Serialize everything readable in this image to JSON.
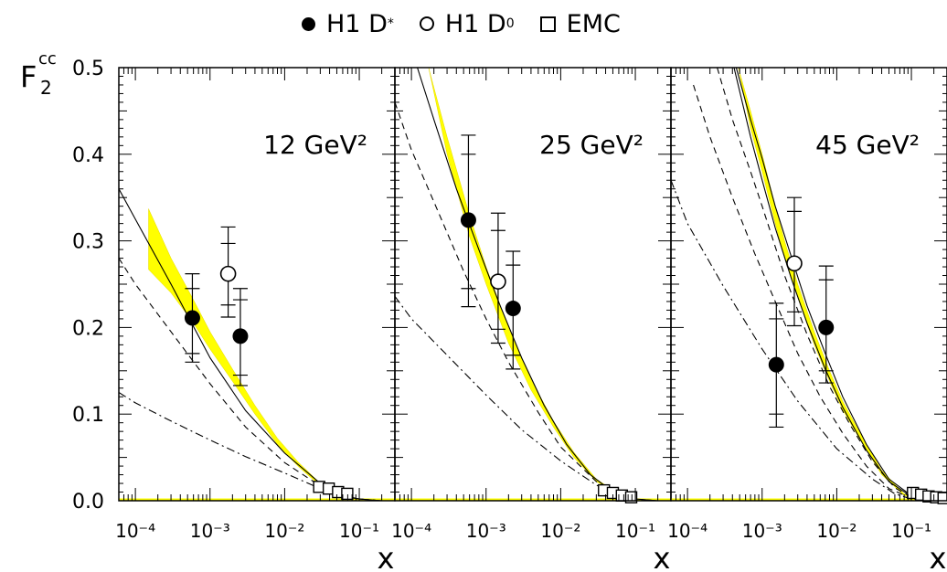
{
  "legend": {
    "h1_dstar": {
      "base": "H1 D",
      "sup": "*"
    },
    "h1_d0": {
      "base": "H1 D",
      "sup": "0"
    },
    "emc": "EMC"
  },
  "ylabel": {
    "base": "F",
    "sub": "2",
    "sup": "cc"
  },
  "colors": {
    "band": "#ffff00",
    "band_edge": "#e6d800",
    "axes": "#000000"
  },
  "chart_data": [
    {
      "type": "scatter",
      "panel_label": "12 GeV²",
      "x_scale": "log",
      "xlim": [
        6e-05,
        0.3
      ],
      "ylim": [
        0.0,
        0.5
      ],
      "xlabel": "x",
      "ylabel": "F2cc",
      "x_tick_labels": [
        "10⁻⁴",
        "10⁻³",
        "10⁻²",
        "10⁻¹"
      ],
      "y_tick_labels": [
        "0.0",
        "0.1",
        "0.2",
        "0.3",
        "0.4",
        "0.5"
      ],
      "series": [
        {
          "name": "H1 D*",
          "marker": "filled-circle",
          "points": [
            {
              "x": 0.00058,
              "y": 0.211,
              "lo": 0.16,
              "hi": 0.262,
              "lo_in": 0.17,
              "hi_in": 0.245
            },
            {
              "x": 0.00255,
              "y": 0.19,
              "lo": 0.133,
              "hi": 0.245,
              "lo_in": 0.145,
              "hi_in": 0.232
            }
          ]
        },
        {
          "name": "H1 D0",
          "marker": "open-circle",
          "points": [
            {
              "x": 0.00175,
              "y": 0.262,
              "lo": 0.212,
              "hi": 0.316,
              "lo_in": 0.226,
              "hi_in": 0.297
            }
          ]
        },
        {
          "name": "EMC",
          "marker": "open-square",
          "points": [
            {
              "x": 0.029,
              "y": 0.016
            },
            {
              "x": 0.039,
              "y": 0.014
            },
            {
              "x": 0.052,
              "y": 0.01
            },
            {
              "x": 0.069,
              "y": 0.008
            }
          ]
        }
      ],
      "band": {
        "x": [
          0.00015,
          0.0003,
          0.0006,
          0.001,
          0.002,
          0.004,
          0.008,
          0.015,
          0.03,
          0.06,
          0.1
        ],
        "upper": [
          0.337,
          0.28,
          0.232,
          0.195,
          0.152,
          0.11,
          0.072,
          0.045,
          0.02,
          0.006,
          0.002
        ],
        "lower": [
          0.267,
          0.24,
          0.205,
          0.175,
          0.138,
          0.1,
          0.065,
          0.04,
          0.017,
          0.005,
          0.001
        ]
      },
      "curves": [
        {
          "style": "solid",
          "x": [
            6e-05,
            0.0001,
            0.0003,
            0.001,
            0.003,
            0.01,
            0.03,
            0.06,
            0.1,
            0.2
          ],
          "y": [
            0.36,
            0.325,
            0.25,
            0.165,
            0.104,
            0.055,
            0.02,
            0.006,
            0.002,
            0.0
          ]
        },
        {
          "style": "dashed",
          "x": [
            6e-05,
            0.0001,
            0.0003,
            0.001,
            0.003,
            0.01,
            0.03,
            0.06,
            0.1,
            0.2
          ],
          "y": [
            0.28,
            0.25,
            0.195,
            0.135,
            0.085,
            0.044,
            0.017,
            0.005,
            0.002,
            0.0
          ]
        },
        {
          "style": "dashdot",
          "x": [
            6e-05,
            0.0001,
            0.0003,
            0.001,
            0.003,
            0.01,
            0.03,
            0.06,
            0.1,
            0.2
          ],
          "y": [
            0.125,
            0.113,
            0.092,
            0.07,
            0.051,
            0.032,
            0.014,
            0.005,
            0.002,
            0.0
          ]
        }
      ]
    },
    {
      "type": "scatter",
      "panel_label": "25 GeV²",
      "x_scale": "log",
      "xlim": [
        6e-05,
        0.3
      ],
      "ylim": [
        0.0,
        0.5
      ],
      "xlabel": "x",
      "ylabel": "F2cc",
      "x_tick_labels": [
        "10⁻⁴",
        "10⁻³",
        "10⁻²",
        "10⁻¹"
      ],
      "y_tick_labels": [],
      "series": [
        {
          "name": "H1 D*",
          "marker": "filled-circle",
          "points": [
            {
              "x": 0.00058,
              "y": 0.324,
              "lo": 0.224,
              "hi": 0.422,
              "lo_in": 0.245,
              "hi_in": 0.4
            },
            {
              "x": 0.0023,
              "y": 0.222,
              "lo": 0.152,
              "hi": 0.288,
              "lo_in": 0.168,
              "hi_in": 0.272
            }
          ]
        },
        {
          "name": "H1 D0",
          "marker": "open-circle",
          "points": [
            {
              "x": 0.00145,
              "y": 0.253,
              "lo": 0.182,
              "hi": 0.332,
              "lo_in": 0.198,
              "hi_in": 0.312
            }
          ]
        },
        {
          "name": "EMC",
          "marker": "open-square",
          "points": [
            {
              "x": 0.038,
              "y": 0.012
            },
            {
              "x": 0.05,
              "y": 0.009
            },
            {
              "x": 0.066,
              "y": 0.006
            },
            {
              "x": 0.088,
              "y": 0.004
            }
          ]
        }
      ],
      "band": {
        "x": [
          0.00017,
          0.0003,
          0.0006,
          0.001,
          0.002,
          0.004,
          0.008,
          0.015,
          0.03,
          0.06,
          0.1
        ],
        "upper": [
          0.5,
          0.42,
          0.33,
          0.27,
          0.2,
          0.14,
          0.092,
          0.056,
          0.025,
          0.008,
          0.002
        ],
        "lower": [
          0.5,
          0.4,
          0.305,
          0.25,
          0.182,
          0.128,
          0.085,
          0.05,
          0.022,
          0.007,
          0.001
        ]
      },
      "curves": [
        {
          "style": "solid",
          "x": [
            0.00012,
            0.0002,
            0.0004,
            0.0008,
            0.0015,
            0.003,
            0.006,
            0.012,
            0.025,
            0.05,
            0.1,
            0.2
          ],
          "y": [
            0.5,
            0.44,
            0.36,
            0.29,
            0.228,
            0.165,
            0.11,
            0.065,
            0.03,
            0.01,
            0.002,
            0.0
          ]
        },
        {
          "style": "dashed",
          "x": [
            6e-05,
            0.0001,
            0.0002,
            0.0005,
            0.001,
            0.002,
            0.005,
            0.01,
            0.03,
            0.06,
            0.1,
            0.2
          ],
          "y": [
            0.46,
            0.405,
            0.345,
            0.265,
            0.21,
            0.16,
            0.102,
            0.062,
            0.022,
            0.007,
            0.002,
            0.0
          ]
        },
        {
          "style": "dashdot",
          "x": [
            6e-05,
            0.0001,
            0.0003,
            0.001,
            0.003,
            0.01,
            0.03,
            0.06,
            0.1,
            0.2
          ],
          "y": [
            0.236,
            0.21,
            0.168,
            0.122,
            0.082,
            0.046,
            0.018,
            0.006,
            0.002,
            0.0
          ]
        }
      ]
    },
    {
      "type": "scatter",
      "panel_label": "45 GeV²",
      "x_scale": "log",
      "xlim": [
        6e-05,
        0.3
      ],
      "ylim": [
        0.0,
        0.5
      ],
      "xlabel": "x",
      "ylabel": "F2cc",
      "x_tick_labels": [
        "10⁻⁴",
        "10⁻³",
        "10⁻²",
        "10⁻¹",
        "1"
      ],
      "y_tick_labels": [],
      "series": [
        {
          "name": "H1 D*",
          "marker": "filled-circle",
          "points": [
            {
              "x": 0.00155,
              "y": 0.157,
              "lo": 0.085,
              "hi": 0.228,
              "lo_in": 0.1,
              "hi_in": 0.21
            },
            {
              "x": 0.0072,
              "y": 0.2,
              "lo": 0.136,
              "hi": 0.271,
              "lo_in": 0.15,
              "hi_in": 0.255
            }
          ]
        },
        {
          "name": "H1 D0",
          "marker": "open-circle",
          "points": [
            {
              "x": 0.0027,
              "y": 0.274,
              "lo": 0.202,
              "hi": 0.35,
              "lo_in": 0.218,
              "hi_in": 0.334
            }
          ]
        },
        {
          "name": "EMC",
          "marker": "open-square",
          "points": [
            {
              "x": 0.105,
              "y": 0.009
            },
            {
              "x": 0.135,
              "y": 0.007
            },
            {
              "x": 0.17,
              "y": 0.005
            },
            {
              "x": 0.215,
              "y": 0.004
            },
            {
              "x": 0.27,
              "y": 0.003
            }
          ]
        }
      ],
      "band": {
        "x": [
          0.00048,
          0.0007,
          0.001,
          0.0015,
          0.002,
          0.003,
          0.005,
          0.008,
          0.012,
          0.02,
          0.04,
          0.08,
          0.15
        ],
        "upper": [
          0.5,
          0.45,
          0.4,
          0.34,
          0.3,
          0.25,
          0.195,
          0.15,
          0.115,
          0.08,
          0.035,
          0.008,
          0.001
        ],
        "lower": [
          0.5,
          0.43,
          0.38,
          0.32,
          0.28,
          0.235,
          0.18,
          0.138,
          0.105,
          0.072,
          0.03,
          0.006,
          0.0
        ]
      },
      "curves": [
        {
          "style": "solid",
          "x": [
            0.00045,
            0.0007,
            0.001,
            0.0015,
            0.0025,
            0.004,
            0.007,
            0.012,
            0.025,
            0.05,
            0.1,
            0.2
          ],
          "y": [
            0.5,
            0.44,
            0.395,
            0.34,
            0.28,
            0.225,
            0.17,
            0.12,
            0.065,
            0.025,
            0.006,
            0.0
          ]
        },
        {
          "style": "solid",
          "x": [
            0.00042,
            0.0007,
            0.001,
            0.0015,
            0.0025,
            0.004,
            0.007,
            0.012,
            0.025,
            0.05,
            0.1,
            0.2
          ],
          "y": [
            0.5,
            0.42,
            0.37,
            0.315,
            0.255,
            0.205,
            0.152,
            0.108,
            0.058,
            0.022,
            0.005,
            0.0
          ]
        },
        {
          "style": "dashed",
          "x": [
            0.00025,
            0.0004,
            0.0007,
            0.001,
            0.002,
            0.004,
            0.008,
            0.015,
            0.03,
            0.06,
            0.1,
            0.2
          ],
          "y": [
            0.5,
            0.44,
            0.38,
            0.34,
            0.26,
            0.192,
            0.132,
            0.088,
            0.045,
            0.015,
            0.004,
            0.0
          ]
        },
        {
          "style": "dashed",
          "x": [
            0.00012,
            0.0002,
            0.0004,
            0.0008,
            0.0015,
            0.003,
            0.006,
            0.012,
            0.025,
            0.05,
            0.1,
            0.2
          ],
          "y": [
            0.48,
            0.42,
            0.35,
            0.285,
            0.23,
            0.17,
            0.12,
            0.078,
            0.04,
            0.014,
            0.003,
            0.0
          ]
        },
        {
          "style": "dashdot",
          "x": [
            6e-05,
            0.0001,
            0.0003,
            0.001,
            0.003,
            0.01,
            0.03,
            0.06,
            0.1,
            0.2
          ],
          "y": [
            0.37,
            0.32,
            0.248,
            0.175,
            0.115,
            0.06,
            0.025,
            0.008,
            0.002,
            0.0
          ]
        }
      ]
    }
  ]
}
